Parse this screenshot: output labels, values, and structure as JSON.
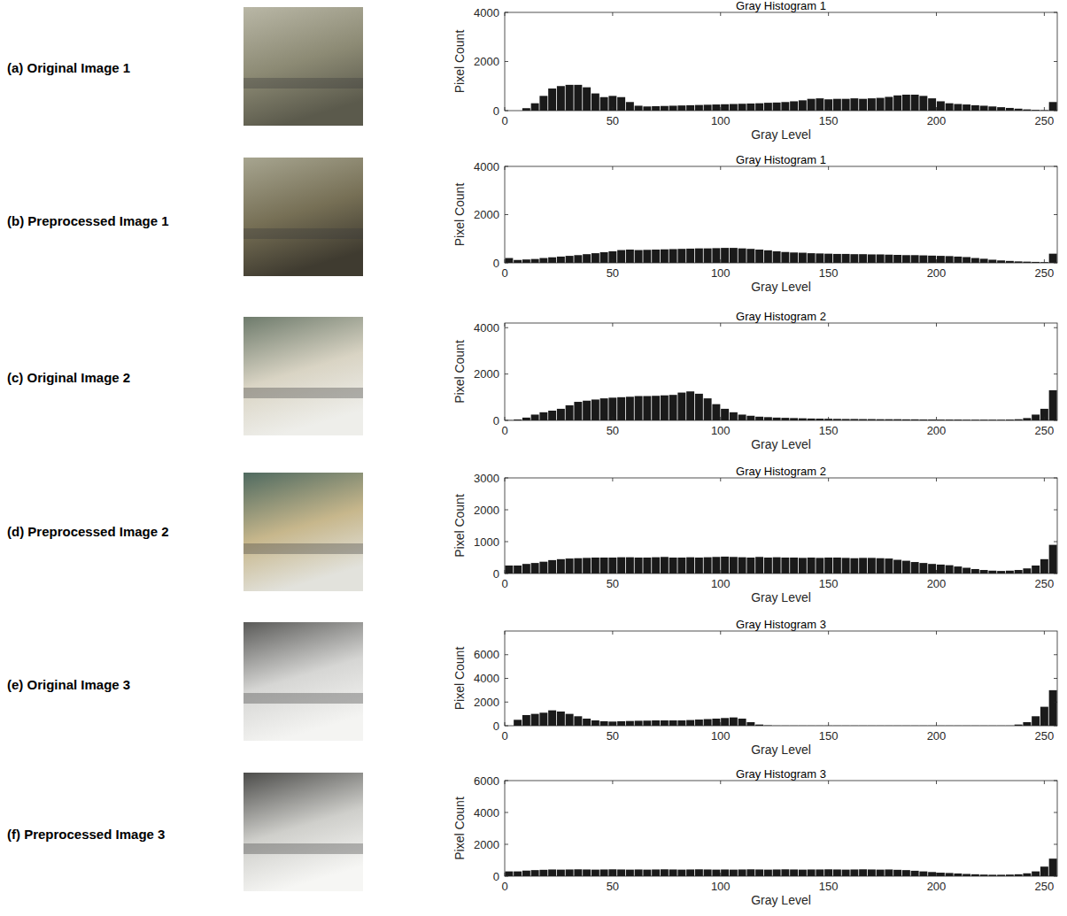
{
  "chart_data": [
    {
      "type": "histogram",
      "label": "(a) Original Image 1",
      "title": "Gray Histogram 1",
      "xlabel": "Gray Level",
      "ylabel": "Pixel Count",
      "bins": [
        0,
        4,
        8,
        12,
        16,
        20,
        24,
        28,
        32,
        36,
        40,
        44,
        48,
        52,
        56,
        60,
        64,
        68,
        72,
        76,
        80,
        84,
        88,
        92,
        96,
        100,
        104,
        108,
        112,
        116,
        120,
        124,
        128,
        132,
        136,
        140,
        144,
        148,
        152,
        156,
        160,
        164,
        168,
        172,
        176,
        180,
        184,
        188,
        192,
        196,
        200,
        204,
        208,
        212,
        216,
        220,
        224,
        228,
        232,
        236,
        240,
        244,
        248,
        252,
        256
      ],
      "values": [
        0,
        0,
        100,
        300,
        600,
        900,
        1000,
        1050,
        1050,
        950,
        700,
        550,
        600,
        550,
        350,
        200,
        170,
        180,
        190,
        200,
        210,
        220,
        230,
        240,
        250,
        260,
        270,
        280,
        290,
        300,
        320,
        330,
        350,
        380,
        420,
        480,
        500,
        460,
        480,
        480,
        500,
        480,
        500,
        520,
        560,
        620,
        650,
        650,
        600,
        500,
        380,
        300,
        270,
        250,
        220,
        200,
        170,
        140,
        110,
        80,
        50,
        30,
        20,
        350
      ],
      "color": "#1a1a1a",
      "xlim": [
        0,
        256
      ],
      "ylim": [
        0,
        4000
      ],
      "xticks": [
        0,
        50,
        100,
        150,
        200,
        250
      ],
      "yticks": [
        0,
        2000,
        4000
      ]
    },
    {
      "type": "histogram",
      "label": "(b) Preprocessed Image 1",
      "title": "Gray Histogram 1",
      "xlabel": "Gray Level",
      "ylabel": "Pixel Count",
      "bins": [
        0,
        4,
        8,
        12,
        16,
        20,
        24,
        28,
        32,
        36,
        40,
        44,
        48,
        52,
        56,
        60,
        64,
        68,
        72,
        76,
        80,
        84,
        88,
        92,
        96,
        100,
        104,
        108,
        112,
        116,
        120,
        124,
        128,
        132,
        136,
        140,
        144,
        148,
        152,
        156,
        160,
        164,
        168,
        172,
        176,
        180,
        184,
        188,
        192,
        196,
        200,
        204,
        208,
        212,
        216,
        220,
        224,
        228,
        232,
        236,
        240,
        244,
        248,
        252,
        256
      ],
      "values": [
        200,
        120,
        140,
        160,
        200,
        230,
        260,
        290,
        320,
        360,
        400,
        440,
        480,
        530,
        550,
        530,
        540,
        550,
        560,
        570,
        580,
        590,
        600,
        600,
        610,
        620,
        620,
        600,
        580,
        550,
        520,
        480,
        450,
        430,
        420,
        400,
        390,
        380,
        370,
        370,
        360,
        360,
        350,
        350,
        340,
        330,
        320,
        320,
        310,
        300,
        290,
        280,
        260,
        240,
        200,
        170,
        130,
        100,
        80,
        60,
        50,
        40,
        30,
        380
      ],
      "color": "#1a1a1a",
      "xlim": [
        0,
        256
      ],
      "ylim": [
        0,
        4000
      ],
      "xticks": [
        0,
        50,
        100,
        150,
        200,
        250
      ],
      "yticks": [
        0,
        2000,
        4000
      ]
    },
    {
      "type": "histogram",
      "label": "(c) Original Image 2",
      "title": "Gray Histogram 2",
      "xlabel": "Gray Level",
      "ylabel": "Pixel Count",
      "bins": [
        0,
        4,
        8,
        12,
        16,
        20,
        24,
        28,
        32,
        36,
        40,
        44,
        48,
        52,
        56,
        60,
        64,
        68,
        72,
        76,
        80,
        84,
        88,
        92,
        96,
        100,
        104,
        108,
        112,
        116,
        120,
        124,
        128,
        132,
        136,
        140,
        144,
        148,
        152,
        156,
        160,
        164,
        168,
        172,
        176,
        180,
        184,
        188,
        192,
        196,
        200,
        204,
        208,
        212,
        216,
        220,
        224,
        228,
        232,
        236,
        240,
        244,
        248,
        252,
        256
      ],
      "values": [
        10,
        40,
        120,
        250,
        350,
        420,
        500,
        650,
        800,
        850,
        900,
        950,
        980,
        1000,
        1020,
        1050,
        1050,
        1060,
        1080,
        1100,
        1200,
        1250,
        1150,
        950,
        700,
        500,
        350,
        250,
        200,
        160,
        140,
        120,
        110,
        100,
        90,
        80,
        75,
        70,
        65,
        60,
        60,
        55,
        55,
        50,
        50,
        50,
        45,
        45,
        40,
        40,
        35,
        35,
        35,
        30,
        30,
        30,
        30,
        30,
        35,
        50,
        100,
        250,
        500,
        1300
      ],
      "color": "#1a1a1a",
      "xlim": [
        0,
        256
      ],
      "ylim": [
        0,
        4200
      ],
      "xticks": [
        0,
        50,
        100,
        150,
        200,
        250
      ],
      "yticks": [
        0,
        2000,
        4000
      ]
    },
    {
      "type": "histogram",
      "label": "(d) Preprocessed Image 2",
      "title": "Gray Histogram 2",
      "xlabel": "Gray Level",
      "ylabel": "Pixel Count",
      "bins": [
        0,
        4,
        8,
        12,
        16,
        20,
        24,
        28,
        32,
        36,
        40,
        44,
        48,
        52,
        56,
        60,
        64,
        68,
        72,
        76,
        80,
        84,
        88,
        92,
        96,
        100,
        104,
        108,
        112,
        116,
        120,
        124,
        128,
        132,
        136,
        140,
        144,
        148,
        152,
        156,
        160,
        164,
        168,
        172,
        176,
        180,
        184,
        188,
        192,
        196,
        200,
        204,
        208,
        212,
        216,
        220,
        224,
        228,
        232,
        236,
        240,
        244,
        248,
        252,
        256
      ],
      "values": [
        250,
        250,
        300,
        330,
        370,
        420,
        450,
        470,
        480,
        490,
        500,
        500,
        500,
        510,
        510,
        500,
        500,
        510,
        520,
        500,
        500,
        510,
        500,
        510,
        520,
        530,
        520,
        510,
        500,
        520,
        500,
        510,
        500,
        500,
        490,
        500,
        490,
        500,
        500,
        490,
        480,
        490,
        490,
        480,
        470,
        430,
        400,
        360,
        330,
        300,
        280,
        260,
        220,
        180,
        140,
        110,
        90,
        80,
        90,
        110,
        160,
        250,
        450,
        900
      ],
      "color": "#1a1a1a",
      "xlim": [
        0,
        256
      ],
      "ylim": [
        0,
        3000
      ],
      "xticks": [
        0,
        50,
        100,
        150,
        200,
        250
      ],
      "yticks": [
        0,
        1000,
        2000,
        3000
      ]
    },
    {
      "type": "histogram",
      "label": "(e) Original Image 3",
      "title": "Gray Histogram 3",
      "xlabel": "Gray Level",
      "ylabel": "Pixel Count",
      "bins": [
        0,
        4,
        8,
        12,
        16,
        20,
        24,
        28,
        32,
        36,
        40,
        44,
        48,
        52,
        56,
        60,
        64,
        68,
        72,
        76,
        80,
        84,
        88,
        92,
        96,
        100,
        104,
        108,
        112,
        116,
        120,
        124,
        128,
        132,
        136,
        140,
        144,
        148,
        152,
        156,
        160,
        164,
        168,
        172,
        176,
        180,
        184,
        188,
        192,
        196,
        200,
        204,
        208,
        212,
        216,
        220,
        224,
        228,
        232,
        236,
        240,
        244,
        248,
        252,
        256
      ],
      "values": [
        0,
        500,
        900,
        1000,
        1100,
        1300,
        1200,
        1000,
        800,
        600,
        450,
        380,
        350,
        380,
        400,
        420,
        430,
        450,
        450,
        450,
        450,
        480,
        520,
        560,
        600,
        650,
        700,
        600,
        300,
        100,
        30,
        10,
        10,
        10,
        10,
        10,
        10,
        10,
        10,
        10,
        10,
        10,
        10,
        10,
        10,
        10,
        10,
        10,
        10,
        10,
        10,
        10,
        10,
        10,
        10,
        10,
        10,
        10,
        10,
        100,
        300,
        800,
        1600,
        3000
      ],
      "color": "#1a1a1a",
      "xlim": [
        0,
        256
      ],
      "ylim": [
        0,
        8000
      ],
      "xticks": [
        0,
        50,
        100,
        150,
        200,
        250
      ],
      "yticks": [
        0,
        2000,
        4000,
        6000
      ]
    },
    {
      "type": "histogram",
      "label": "(f) Preprocessed Image 3",
      "title": "Gray Histogram 3",
      "xlabel": "Gray Level",
      "ylabel": "Pixel Count",
      "bins": [
        0,
        4,
        8,
        12,
        16,
        20,
        24,
        28,
        32,
        36,
        40,
        44,
        48,
        52,
        56,
        60,
        64,
        68,
        72,
        76,
        80,
        84,
        88,
        92,
        96,
        100,
        104,
        108,
        112,
        116,
        120,
        124,
        128,
        132,
        136,
        140,
        144,
        148,
        152,
        156,
        160,
        164,
        168,
        172,
        176,
        180,
        184,
        188,
        192,
        196,
        200,
        204,
        208,
        212,
        216,
        220,
        224,
        228,
        232,
        236,
        240,
        244,
        248,
        252,
        256
      ],
      "values": [
        300,
        300,
        350,
        380,
        400,
        420,
        410,
        420,
        430,
        420,
        410,
        420,
        430,
        420,
        410,
        420,
        410,
        420,
        430,
        420,
        410,
        420,
        430,
        420,
        410,
        420,
        410,
        420,
        430,
        420,
        410,
        420,
        430,
        420,
        410,
        420,
        420,
        430,
        420,
        410,
        420,
        430,
        420,
        410,
        420,
        400,
        380,
        340,
        300,
        260,
        220,
        200,
        170,
        140,
        120,
        100,
        90,
        90,
        100,
        120,
        180,
        300,
        600,
        1100
      ],
      "color": "#1a1a1a",
      "xlim": [
        0,
        256
      ],
      "ylim": [
        0,
        6000
      ],
      "xticks": [
        0,
        50,
        100,
        150,
        200,
        250
      ],
      "yticks": [
        0,
        2000,
        4000,
        6000
      ]
    }
  ]
}
